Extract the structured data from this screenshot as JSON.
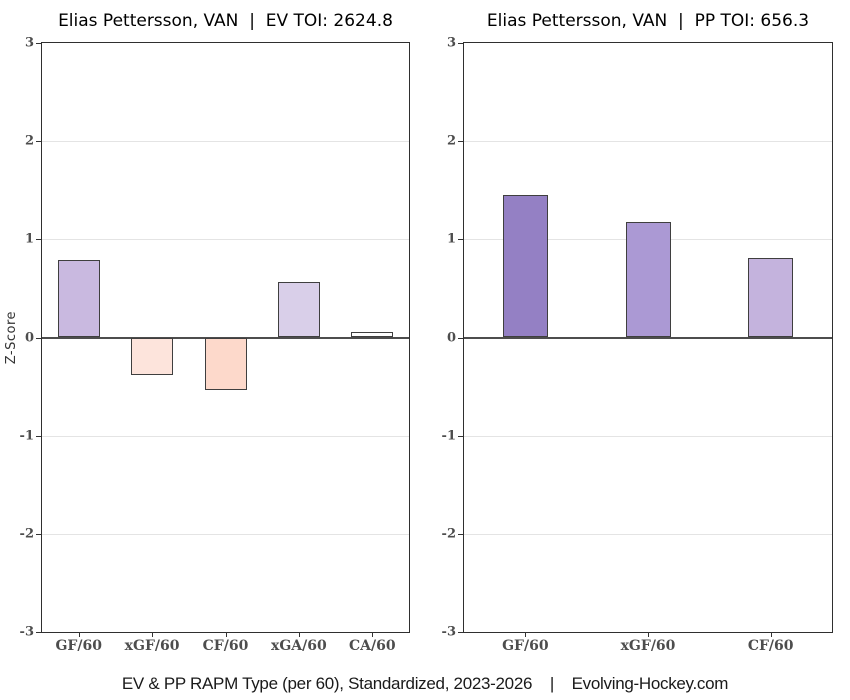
{
  "figure": {
    "caption": "EV & PP RAPM Type (per 60), Standardized, 2023-2026    |    Evolving-Hockey.com"
  },
  "chart_data": [
    {
      "type": "bar",
      "title": "Elias Pettersson, VAN  |  EV TOI: 2624.8",
      "ylabel": "Z-Score",
      "xlabel": "",
      "ylim": [
        -3,
        3
      ],
      "yticks": [
        3,
        2,
        1,
        0,
        -1,
        -2,
        -3
      ],
      "grid": true,
      "legend": false,
      "categories": [
        "GF/60",
        "xGF/60",
        "CF/60",
        "xGA/60",
        "CA/60"
      ],
      "values": [
        0.79,
        -0.38,
        -0.53,
        0.57,
        0.06
      ],
      "bar_colors": [
        "#c9b9e0",
        "#fde4dc",
        "#fdd9cb",
        "#d9cfe9",
        "#ffffff"
      ]
    },
    {
      "type": "bar",
      "title": "Elias Pettersson, VAN  |  PP TOI: 656.3",
      "ylabel": "",
      "xlabel": "",
      "ylim": [
        -3,
        3
      ],
      "yticks": [
        3,
        2,
        1,
        0,
        -1,
        -2,
        -3
      ],
      "grid": true,
      "legend": false,
      "categories": [
        "GF/60",
        "xGF/60",
        "CF/60"
      ],
      "values": [
        1.45,
        1.18,
        0.81
      ],
      "bar_colors": [
        "#9480c4",
        "#ab99d4",
        "#c4b3dd"
      ]
    }
  ],
  "colors": {
    "zero_line": "#4d4d4d",
    "grid": "#e4e4e4",
    "frame": "#2f2f2f",
    "bar_outline": "#3f3f3f"
  }
}
